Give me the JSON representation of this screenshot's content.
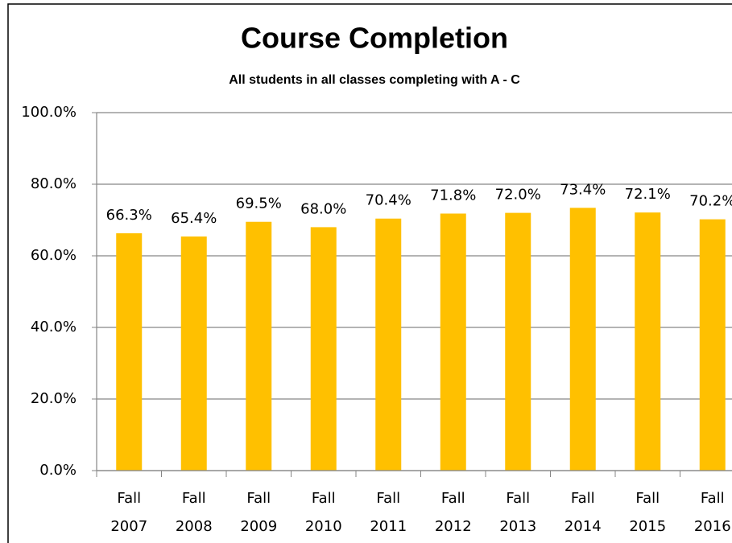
{
  "chart_data": {
    "type": "bar",
    "title": "Course Completion",
    "subtitle": "All students in all classes completing with A - C",
    "categories": [
      "Fall 2007",
      "Fall 2008",
      "Fall 2009",
      "Fall 2010",
      "Fall 2011",
      "Fall 2012",
      "Fall 2013",
      "Fall 2014",
      "Fall 2015",
      "Fall 2016"
    ],
    "values": [
      66.3,
      65.4,
      69.5,
      68.0,
      70.4,
      71.8,
      72.0,
      73.4,
      72.1,
      70.2
    ],
    "value_labels": [
      "66.3%",
      "65.4%",
      "69.5%",
      "68.0%",
      "70.4%",
      "71.8%",
      "72.0%",
      "73.4%",
      "72.1%",
      "70.2%"
    ],
    "color": "#ffc000",
    "ylim": [
      0,
      100
    ],
    "yticks": [
      {
        "value": 0,
        "label": "0.0%"
      },
      {
        "value": 20,
        "label": "20.0%"
      },
      {
        "value": 40,
        "label": "40.0%"
      },
      {
        "value": 60,
        "label": "60.0%"
      },
      {
        "value": 80,
        "label": "80.0%"
      },
      {
        "value": 100,
        "label": "100.0%"
      }
    ],
    "grid": true
  }
}
